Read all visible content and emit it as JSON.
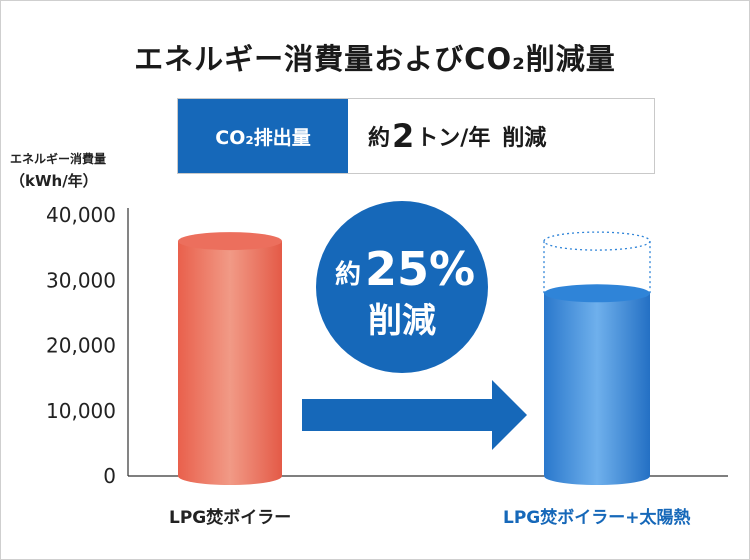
{
  "title": "エネルギー消費量およびCO₂削減量",
  "co2": {
    "label": "CO₂排出量",
    "prefix": "約",
    "amount": "2",
    "unit": "トン/年",
    "reduction": "削減"
  },
  "ylabel_line1": "エネルギー消費量",
  "ylabel_line2": "（kWh/年）",
  "reduction_badge": {
    "prefix": "約",
    "percent": "25%",
    "word": "削減",
    "color": "#1668b9"
  },
  "chart_data": {
    "type": "bar",
    "categories": [
      "LPG焚ボイラー",
      "LPG焚ボイラー+太陽熱"
    ],
    "values": [
      36000,
      28000
    ],
    "ylim": [
      0,
      40000
    ],
    "ticks": [
      0,
      10000,
      20000,
      30000,
      40000
    ],
    "tick_labels": [
      "0",
      "10,000",
      "20,000",
      "30,000",
      "40,000"
    ],
    "grid": false,
    "colors": [
      "#ec6f5d",
      "#2f84d8"
    ],
    "category_label_colors": [
      "#222222",
      "#1668b9"
    ]
  }
}
